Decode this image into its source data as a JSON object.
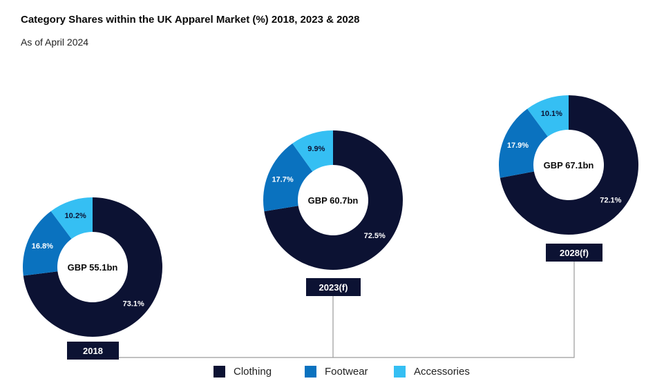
{
  "title": "Category Shares within the UK Apparel Market (%) 2018, 2023 & 2028",
  "subtitle": "As of April 2024",
  "chart_data": {
    "type": "pie",
    "series_names": [
      "Clothing",
      "Footwear",
      "Accessories"
    ],
    "colors": {
      "Clothing": "#0c1233",
      "Footwear": "#0a72bf",
      "Accessories": "#35bff3"
    },
    "charts": [
      {
        "year": "2018",
        "total": "GBP 55.1bn",
        "values": [
          73.1,
          16.8,
          10.2
        ],
        "labels": [
          "73.1%",
          "16.8%",
          "10.2%"
        ]
      },
      {
        "year": "2023(f)",
        "total": "GBP 60.7bn",
        "values": [
          72.5,
          17.7,
          9.9
        ],
        "labels": [
          "72.5%",
          "17.7%",
          "9.9%"
        ]
      },
      {
        "year": "2028(f)",
        "total": "GBP 67.1bn",
        "values": [
          72.1,
          17.9,
          10.1
        ],
        "labels": [
          "72.1%",
          "17.9%",
          "10.1%"
        ]
      }
    ]
  },
  "legend": {
    "items": [
      {
        "label": "Clothing",
        "color": "#0c1233"
      },
      {
        "label": "Footwear",
        "color": "#0a72bf"
      },
      {
        "label": "Accessories",
        "color": "#35bff3"
      }
    ]
  }
}
